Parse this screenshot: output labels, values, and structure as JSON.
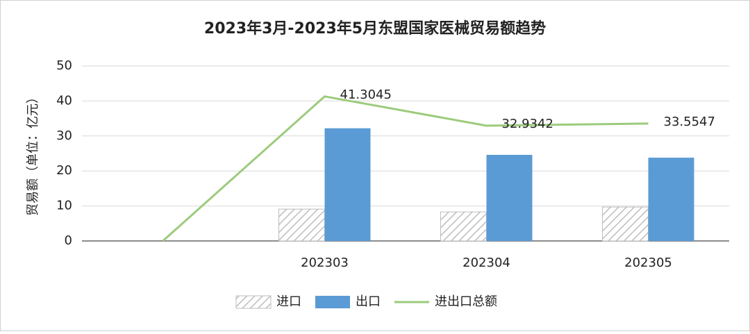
{
  "chart_data": {
    "type": "bar",
    "title": "2023年3月-2023年5月东盟国家医械贸易额趋势",
    "y_label": "贸易额（单位：亿元）",
    "categories": [
      null,
      "202303",
      "202304",
      "202305"
    ],
    "series": [
      {
        "name": "进口",
        "type": "bar",
        "color": "#d9d9d9",
        "values": [
          null,
          9.1,
          8.3,
          9.7
        ]
      },
      {
        "name": "出口",
        "type": "bar",
        "color": "#5b9bd5",
        "values": [
          null,
          32.2,
          24.6,
          23.8
        ]
      },
      {
        "name": "进出口总额",
        "type": "line",
        "color": "#9ccb7b",
        "values": [
          0,
          41.3045,
          32.9342,
          33.5547
        ],
        "data_labels": [
          false,
          true,
          true,
          true
        ]
      }
    ],
    "ylim": [
      0,
      50
    ],
    "yticks": [
      0,
      10,
      20,
      30,
      40,
      50
    ],
    "grid": true,
    "legend": "bottom"
  }
}
